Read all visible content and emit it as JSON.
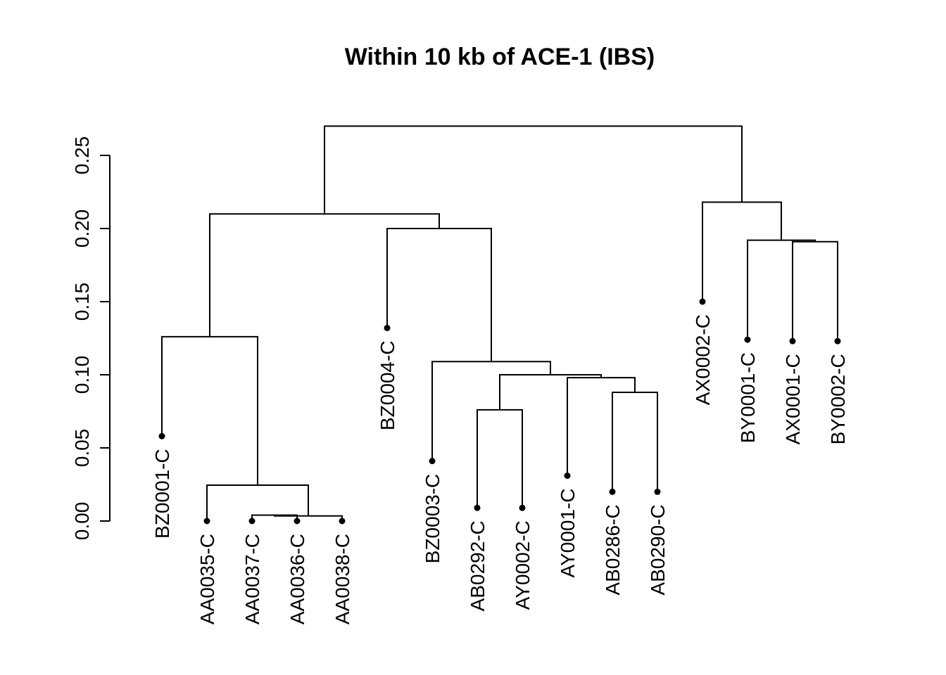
{
  "chart_data": {
    "type": "dendrogram",
    "title": "Within 10 kb of ACE-1 (IBS)",
    "ylabel": "",
    "xlabel": "",
    "ylim": [
      0,
      0.25
    ],
    "y_ticks": [
      "0.00",
      "0.05",
      "0.10",
      "0.15",
      "0.20",
      "0.25"
    ],
    "leaves": [
      {
        "label": "BZ0001-C",
        "height": 0.058
      },
      {
        "label": "AA0035-C",
        "height": 0.0
      },
      {
        "label": "AA0037-C",
        "height": 0.0
      },
      {
        "label": "AA0036-C",
        "height": 0.0
      },
      {
        "label": "AA0038-C",
        "height": 0.0
      },
      {
        "label": "BZ0004-C",
        "height": 0.132
      },
      {
        "label": "BZ0003-C",
        "height": 0.041
      },
      {
        "label": "AB0292-C",
        "height": 0.009
      },
      {
        "label": "AY0002-C",
        "height": 0.009
      },
      {
        "label": "AY0001-C",
        "height": 0.031
      },
      {
        "label": "AB0286-C",
        "height": 0.02
      },
      {
        "label": "AB0290-C",
        "height": 0.02
      },
      {
        "label": "AX0002-C",
        "height": 0.15
      },
      {
        "label": "BY0001-C",
        "height": 0.124
      },
      {
        "label": "AX0001-C",
        "height": 0.123
      },
      {
        "label": "BY0002-C",
        "height": 0.123
      }
    ],
    "merges": [
      {
        "left": 2,
        "right": 3,
        "height": 0.004
      },
      {
        "left": "m0",
        "right": 4,
        "height": 0.0035
      },
      {
        "left": 1,
        "right": "m1",
        "height": 0.0245
      },
      {
        "left": 0,
        "right": "m2",
        "height": 0.126
      },
      {
        "left": 7,
        "right": 8,
        "height": 0.076
      },
      {
        "left": 10,
        "right": 11,
        "height": 0.088
      },
      {
        "left": 9,
        "right": "m5",
        "height": 0.098
      },
      {
        "left": "m4",
        "right": "m6",
        "height": 0.1
      },
      {
        "left": 6,
        "right": "m7",
        "height": 0.109
      },
      {
        "left": 5,
        "right": "m8",
        "height": 0.2
      },
      {
        "left": "m3",
        "right": "m9",
        "height": 0.21
      },
      {
        "left": 14,
        "right": 15,
        "height": 0.191
      },
      {
        "left": 13,
        "right": "m11",
        "height": 0.192
      },
      {
        "left": 12,
        "right": "m12",
        "height": 0.218
      },
      {
        "left": "m10",
        "right": "m13",
        "height": 0.27
      }
    ]
  }
}
